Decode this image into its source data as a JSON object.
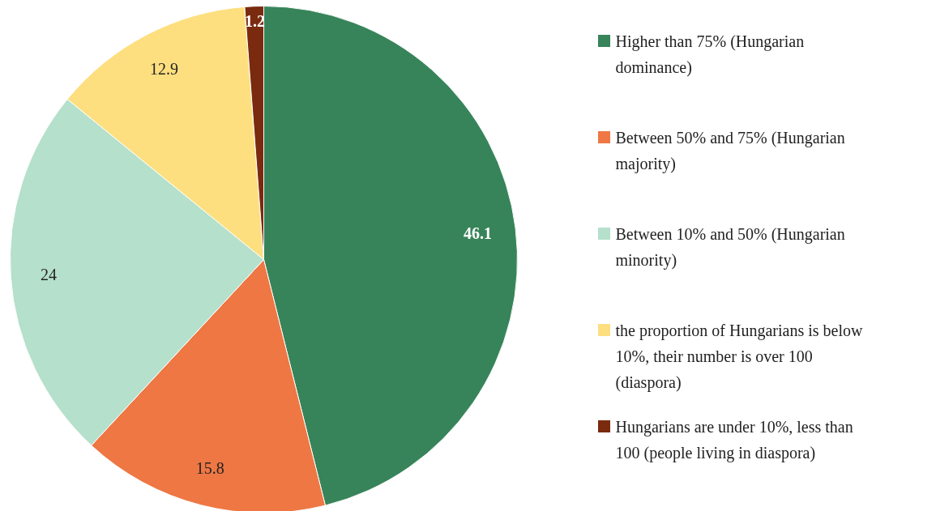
{
  "chart_data": {
    "type": "pie",
    "categories": [
      "Higher than 75%  (Hungarian dominance)",
      "Between 50% and 75% (Hungarian majority)",
      "Between 10% and 50% (Hungarian minority)",
      "the proportion of Hungarians is below 10%, their number is over 100 (diaspora)",
      "Hungarians are under 10%, less than 100 (people living in diaspora)"
    ],
    "values": [
      46.1,
      15.8,
      24,
      12.9,
      1.2
    ],
    "colors": [
      "#38845a",
      "#ee7744",
      "#b5e0cb",
      "#fddf7f",
      "#7a2a0e"
    ],
    "data_labels": true,
    "legend": "right"
  }
}
